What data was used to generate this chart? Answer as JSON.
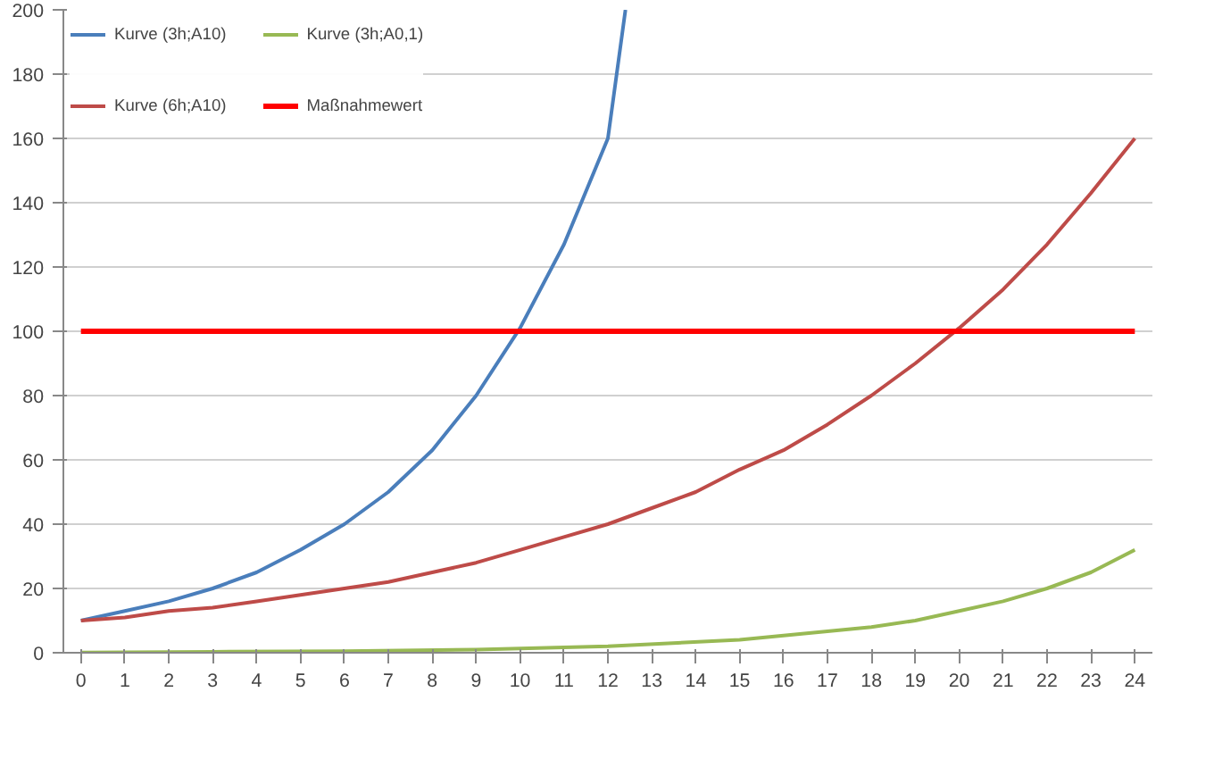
{
  "chart_data": {
    "type": "line",
    "legend": "top",
    "grid": "y",
    "marker": "none",
    "line_style": "solid",
    "xlim": [
      -0.4,
      24.4
    ],
    "xticks": [
      0,
      1,
      2,
      3,
      4,
      5,
      6,
      7,
      8,
      9,
      10,
      11,
      12,
      13,
      14,
      15,
      16,
      17,
      18,
      19,
      20,
      21,
      22,
      23,
      24
    ],
    "ylim": [
      0,
      200
    ],
    "yticks": [
      0,
      20,
      40,
      60,
      80,
      100,
      120,
      140,
      160,
      180,
      200
    ],
    "series": [
      {
        "name": "Kurve (3h;A10)",
        "color": "#4a7ebb",
        "x": [
          0,
          1,
          2,
          3,
          4,
          5,
          6,
          7,
          8,
          9,
          10,
          11,
          12,
          12.4
        ],
        "values": [
          10,
          13,
          16,
          20,
          25,
          32,
          40,
          50,
          63,
          80,
          101,
          127,
          160,
          200
        ]
      },
      {
        "name": "Kurve (6h;A10)",
        "color": "#be4b48",
        "x": [
          0,
          1,
          2,
          3,
          4,
          5,
          6,
          7,
          8,
          9,
          10,
          11,
          12,
          13,
          14,
          15,
          16,
          17,
          18,
          19,
          20,
          21,
          22,
          23,
          24
        ],
        "values": [
          10,
          11,
          13,
          14,
          16,
          18,
          20,
          22,
          25,
          28,
          32,
          36,
          40,
          45,
          50,
          57,
          63,
          71,
          80,
          90,
          101,
          113,
          127,
          143,
          160
        ]
      },
      {
        "name": "Kurve (3h;A0,1)",
        "color": "#98b954",
        "x": [
          0,
          3,
          6,
          9,
          12,
          15,
          18,
          19,
          20,
          21,
          22,
          23,
          24
        ],
        "values": [
          0.1,
          0.3,
          0.5,
          1,
          2,
          4,
          8,
          10,
          13,
          16,
          20,
          25,
          32
        ]
      },
      {
        "name": "Maßnahmewert",
        "color": "#ff0000",
        "x": [
          0,
          24
        ],
        "values": [
          100,
          100
        ]
      }
    ]
  }
}
